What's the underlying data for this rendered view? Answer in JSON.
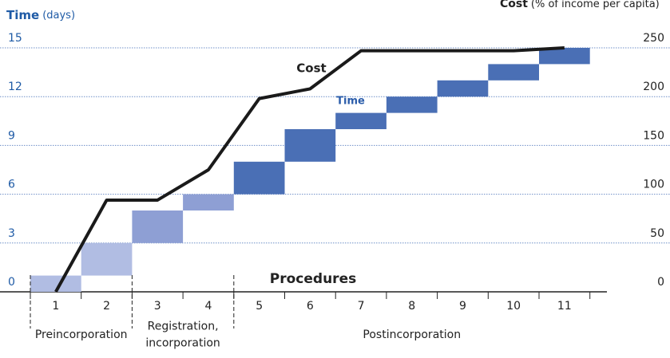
{
  "chart_data": {
    "type": "gantt-line",
    "y_title": "Time",
    "y_unit": "(days)",
    "y2_title": "Cost",
    "y2_unit": "(% of income per capita)",
    "x_title": "Procedures",
    "categories": [
      "1",
      "2",
      "3",
      "4",
      "5",
      "6",
      "7",
      "8",
      "9",
      "10",
      "11"
    ],
    "ylim": [
      0,
      15
    ],
    "yticks": [
      0,
      3,
      6,
      9,
      12,
      15
    ],
    "y2lim": [
      0,
      250
    ],
    "y2ticks": [
      0,
      50,
      100,
      150,
      200,
      250
    ],
    "grid": true,
    "series": [
      {
        "name": "Time",
        "color": "#2a5caa",
        "values": [
          1,
          2,
          2,
          1,
          2,
          2,
          1,
          1,
          1,
          1,
          1
        ],
        "colors": [
          "#b1bde3",
          "#b1bde3",
          "#8e9fd4",
          "#8e9fd4",
          "#4a6fb5",
          "#4a6fb5",
          "#4a6fb5",
          "#4a6fb5",
          "#4a6fb5",
          "#4a6fb5",
          "#4a6fb5"
        ]
      },
      {
        "name": "Cost",
        "color": "#1a1a1a",
        "axis": "y2",
        "values": [
          0,
          94,
          94,
          125,
          198,
          208,
          247,
          247,
          247,
          247,
          250
        ]
      }
    ],
    "phases": [
      {
        "label": [
          "Preincorporation"
        ]
      },
      {
        "label": [
          "Registration,",
          "incorporation"
        ]
      },
      {
        "label": [
          "Postincorporation"
        ]
      }
    ]
  }
}
